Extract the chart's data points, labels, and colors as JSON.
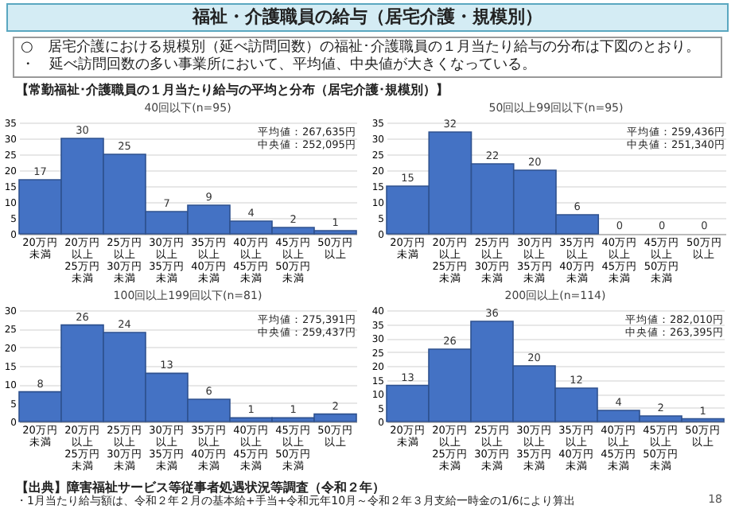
{
  "chart_data": [
    {
      "type": "other",
      "title": "福祉・介護職員の給与（居宅介護・規模別）",
      "annotations": [
        "○　居宅介護における規模別（延べ訪問回数）の福祉･介護職員の１月当たり給与の分布は下図のとおり。",
        "・　延べ訪問回数の多い事業所において、平均値、中央値が大きくなっている。",
        "【常勤福祉･介護職員の１月当たり給与の平均と分布（居宅介護･規模別）】"
      ]
    },
    {
      "type": "bar",
      "title": "40回以下(n=95)",
      "categories": [
        "20万円未満",
        "20万円以上25万円未満",
        "25万円以上30万円未満",
        "30万円以上35万円未満",
        "35万円以上40万円未満",
        "40万円以上45万円未満",
        "45万円以上50万円未満",
        "50万円以上"
      ],
      "values": [
        17,
        30,
        25,
        7,
        9,
        4,
        2,
        1
      ],
      "color": "#4472c4",
      "ylim": [
        0,
        35
      ],
      "yticks": [
        0,
        5,
        10,
        15,
        20,
        25,
        30,
        35
      ],
      "grid": "y",
      "data_labels": true,
      "annotations": [
        "平均値：267,635円",
        "中央値：252,095円"
      ]
    },
    {
      "type": "bar",
      "title": "50回以上99回以下(n=95)",
      "categories": [
        "20万円未満",
        "20万円以上25万円未満",
        "25万円以上30万円未満",
        "30万円以上35万円未満",
        "35万円以上40万円未満",
        "40万円以上45万円未満",
        "45万円以上50万円未満",
        "50万円以上"
      ],
      "values": [
        15,
        32,
        22,
        20,
        6,
        0,
        0,
        0
      ],
      "color": "#4472c4",
      "ylim": [
        0,
        35
      ],
      "yticks": [
        0,
        5,
        10,
        15,
        20,
        25,
        30,
        35
      ],
      "grid": "y",
      "data_labels": true,
      "annotations": [
        "平均値：259,436円",
        "中央値：251,340円"
      ]
    },
    {
      "type": "bar",
      "title": "100回以上199回以下(n=81)",
      "categories": [
        "20万円未満",
        "20万円以上25万円未満",
        "25万円以上30万円未満",
        "30万円以上35万円未満",
        "35万円以上40万円未満",
        "40万円以上45万円未満",
        "45万円以上50万円未満",
        "50万円以上"
      ],
      "values": [
        8,
        26,
        24,
        13,
        6,
        1,
        1,
        2
      ],
      "color": "#4472c4",
      "ylim": [
        0,
        30
      ],
      "yticks": [
        0,
        5,
        10,
        15,
        20,
        25,
        30
      ],
      "grid": "y",
      "data_labels": true,
      "annotations": [
        "平均値：275,391円",
        "中央値：259,437円"
      ]
    },
    {
      "type": "bar",
      "title": "200回以上(n=114)",
      "categories": [
        "20万円未満",
        "20万円以上25万円未満",
        "25万円以上30万円未満",
        "30万円以上35万円未満",
        "35万円以上40万円未満",
        "40万円以上45万円未満",
        "45万円以上50万円未満",
        "50万円以上"
      ],
      "values": [
        13,
        26,
        36,
        20,
        12,
        4,
        2,
        1
      ],
      "color": "#4472c4",
      "ylim": [
        0,
        40
      ],
      "yticks": [
        0,
        5,
        10,
        15,
        20,
        25,
        30,
        35,
        40
      ],
      "grid": "y",
      "data_labels": true,
      "annotations": [
        "平均値：282,010円",
        "中央値：263,395円"
      ]
    },
    {
      "type": "other",
      "annotations": [
        "【出典】障害福祉サービス等従事者処遇状況等調査（令和２年）",
        "・1月当たり給与額は、令和２年２月の基本給+手当+令和元年10月～令和２年３月支給一時金の1/6により算出",
        "18"
      ]
    }
  ]
}
